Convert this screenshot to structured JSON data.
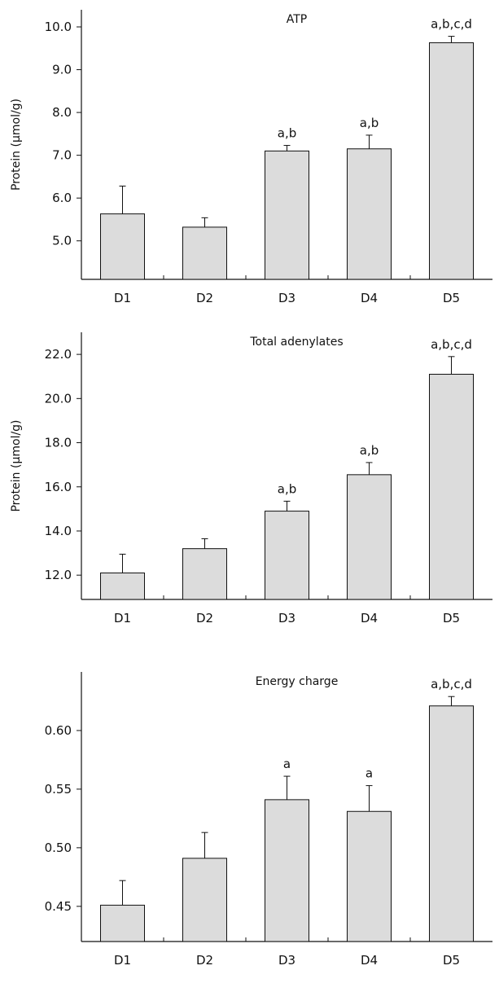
{
  "chart_data": [
    {
      "type": "bar",
      "title": "ATP",
      "ylabel": "Protein (μmol/g)",
      "categories": [
        "D1",
        "D2",
        "D3",
        "D4",
        "D5"
      ],
      "values": [
        5.63,
        5.32,
        7.1,
        7.15,
        9.63
      ],
      "errors": [
        0.65,
        0.22,
        0.13,
        0.32,
        0.15
      ],
      "annotations": [
        "",
        "",
        "a,b",
        "a,b",
        "a,b,c,d"
      ],
      "yticks": [
        "5.0",
        "6.0",
        "7.0",
        "8.0",
        "9.0",
        "10.0"
      ],
      "ylim": [
        4.1,
        10.4
      ]
    },
    {
      "type": "bar",
      "title": "Total adenylates",
      "ylabel": "Protein (μmol/g)",
      "categories": [
        "D1",
        "D2",
        "D3",
        "D4",
        "D5"
      ],
      "values": [
        12.1,
        13.2,
        14.9,
        16.55,
        21.1
      ],
      "errors": [
        0.85,
        0.45,
        0.45,
        0.55,
        0.8
      ],
      "annotations": [
        "",
        "",
        "a,b",
        "a,b",
        "a,b,c,d"
      ],
      "yticks": [
        "12.0",
        "14.0",
        "16.0",
        "18.0",
        "20.0",
        "22.0"
      ],
      "ylim": [
        10.9,
        23.0
      ]
    },
    {
      "type": "bar",
      "title": "Energy charge",
      "ylabel": "",
      "categories": [
        "D1",
        "D2",
        "D3",
        "D4",
        "D5"
      ],
      "values": [
        0.451,
        0.491,
        0.541,
        0.531,
        0.621
      ],
      "errors": [
        0.021,
        0.022,
        0.02,
        0.022,
        0.008
      ],
      "annotations": [
        "",
        "",
        "a",
        "a",
        "a,b,c,d"
      ],
      "yticks": [
        "0.45",
        "0.50",
        "0.55",
        "0.60"
      ],
      "ylim": [
        0.42,
        0.65
      ]
    }
  ]
}
